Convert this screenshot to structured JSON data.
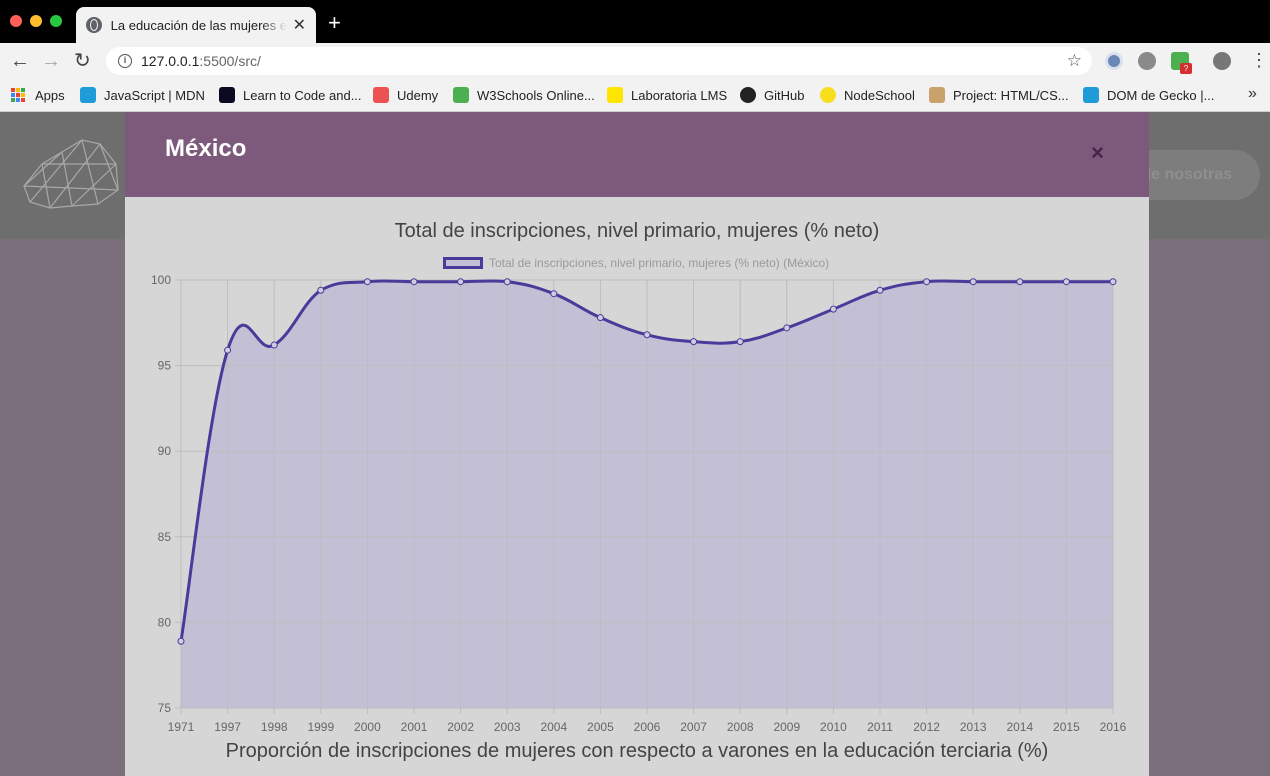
{
  "browser": {
    "tab_title": "La educación de las mujeres en",
    "url_host": "127.0.0.1",
    "url_rest": ":5500/src/",
    "bookmarks": [
      {
        "label": "Apps",
        "color": "#e94235"
      },
      {
        "label": "JavaScript | MDN",
        "color": "#1f9bd7"
      },
      {
        "label": "Learn to Code and...",
        "color": "#0a0a23"
      },
      {
        "label": "Udemy",
        "color": "#ec5252"
      },
      {
        "label": "W3Schools Online...",
        "color": "#4caf50"
      },
      {
        "label": "Laboratoria LMS",
        "color": "#ffe600"
      },
      {
        "label": "GitHub",
        "color": "#222222"
      },
      {
        "label": "NodeSchool",
        "color": "#f7df1e"
      },
      {
        "label": "Project: HTML/CS...",
        "color": "#c9a26b"
      },
      {
        "label": "DOM de Gecko |...",
        "color": "#1f9bd7"
      }
    ],
    "extension_badge": "?"
  },
  "page": {
    "about_button": "a de nosotras"
  },
  "modal": {
    "country": "México",
    "close_symbol": "×",
    "bottom_title": "Proporción de inscripciones de mujeres con respecto a varones en la educación terciaria (%)"
  },
  "chart_data": {
    "type": "line",
    "title": "Total de inscripciones, nivel primario, mujeres (% neto)",
    "legend": "Total de inscripciones, nivel primario, mujeres (% neto) (México)",
    "legend_position": "top-center",
    "categories": [
      "1971",
      "1997",
      "1998",
      "1999",
      "2000",
      "2001",
      "2002",
      "2003",
      "2004",
      "2005",
      "2006",
      "2007",
      "2008",
      "2009",
      "2010",
      "2011",
      "2012",
      "2013",
      "2014",
      "2015",
      "2016"
    ],
    "series": [
      {
        "name": "Total de inscripciones, nivel primario, mujeres (% neto) (México)",
        "values": [
          78.9,
          95.9,
          96.2,
          99.4,
          99.9,
          99.9,
          99.9,
          99.9,
          99.2,
          97.8,
          96.8,
          96.4,
          96.4,
          97.2,
          98.3,
          99.4,
          99.9,
          99.9,
          99.9,
          99.9,
          99.9
        ]
      }
    ],
    "ylim": [
      75,
      100
    ],
    "yticks": [
      75,
      80,
      85,
      90,
      95,
      100
    ],
    "grid": true,
    "fill": true,
    "line_color": "#4b3a9a",
    "fill_color": "#c3c0d6"
  }
}
